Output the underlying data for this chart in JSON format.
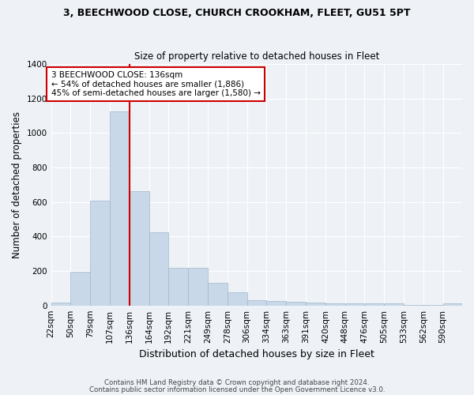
{
  "title1": "3, BEECHWOOD CLOSE, CHURCH CROOKHAM, FLEET, GU51 5PT",
  "title2": "Size of property relative to detached houses in Fleet",
  "xlabel": "Distribution of detached houses by size in Fleet",
  "ylabel": "Number of detached properties",
  "bar_color": "#c8d8e8",
  "bar_edge_color": "#a0b8cc",
  "vline_color": "#cc0000",
  "vline_x": 136,
  "categories": [
    "22sqm",
    "50sqm",
    "79sqm",
    "107sqm",
    "136sqm",
    "164sqm",
    "192sqm",
    "221sqm",
    "249sqm",
    "278sqm",
    "306sqm",
    "334sqm",
    "363sqm",
    "391sqm",
    "420sqm",
    "448sqm",
    "476sqm",
    "505sqm",
    "533sqm",
    "562sqm",
    "590sqm"
  ],
  "bin_edges": [
    22,
    50,
    79,
    107,
    136,
    164,
    192,
    221,
    249,
    278,
    306,
    334,
    363,
    391,
    420,
    448,
    476,
    505,
    533,
    562,
    590
  ],
  "values": [
    18,
    195,
    610,
    1125,
    665,
    425,
    220,
    220,
    130,
    75,
    30,
    25,
    20,
    15,
    10,
    10,
    10,
    10,
    5,
    5,
    10
  ],
  "ylim": [
    0,
    1400
  ],
  "yticks": [
    0,
    200,
    400,
    600,
    800,
    1000,
    1200,
    1400
  ],
  "annotation_text": "3 BEECHWOOD CLOSE: 136sqm\n← 54% of detached houses are smaller (1,886)\n45% of semi-detached houses are larger (1,580) →",
  "annotation_box_color": "#ffffff",
  "annotation_box_edge": "#cc0000",
  "footer1": "Contains HM Land Registry data © Crown copyright and database right 2024.",
  "footer2": "Contains public sector information licensed under the Open Government Licence v3.0.",
  "bg_color": "#eef2f7",
  "grid_color": "#ffffff"
}
